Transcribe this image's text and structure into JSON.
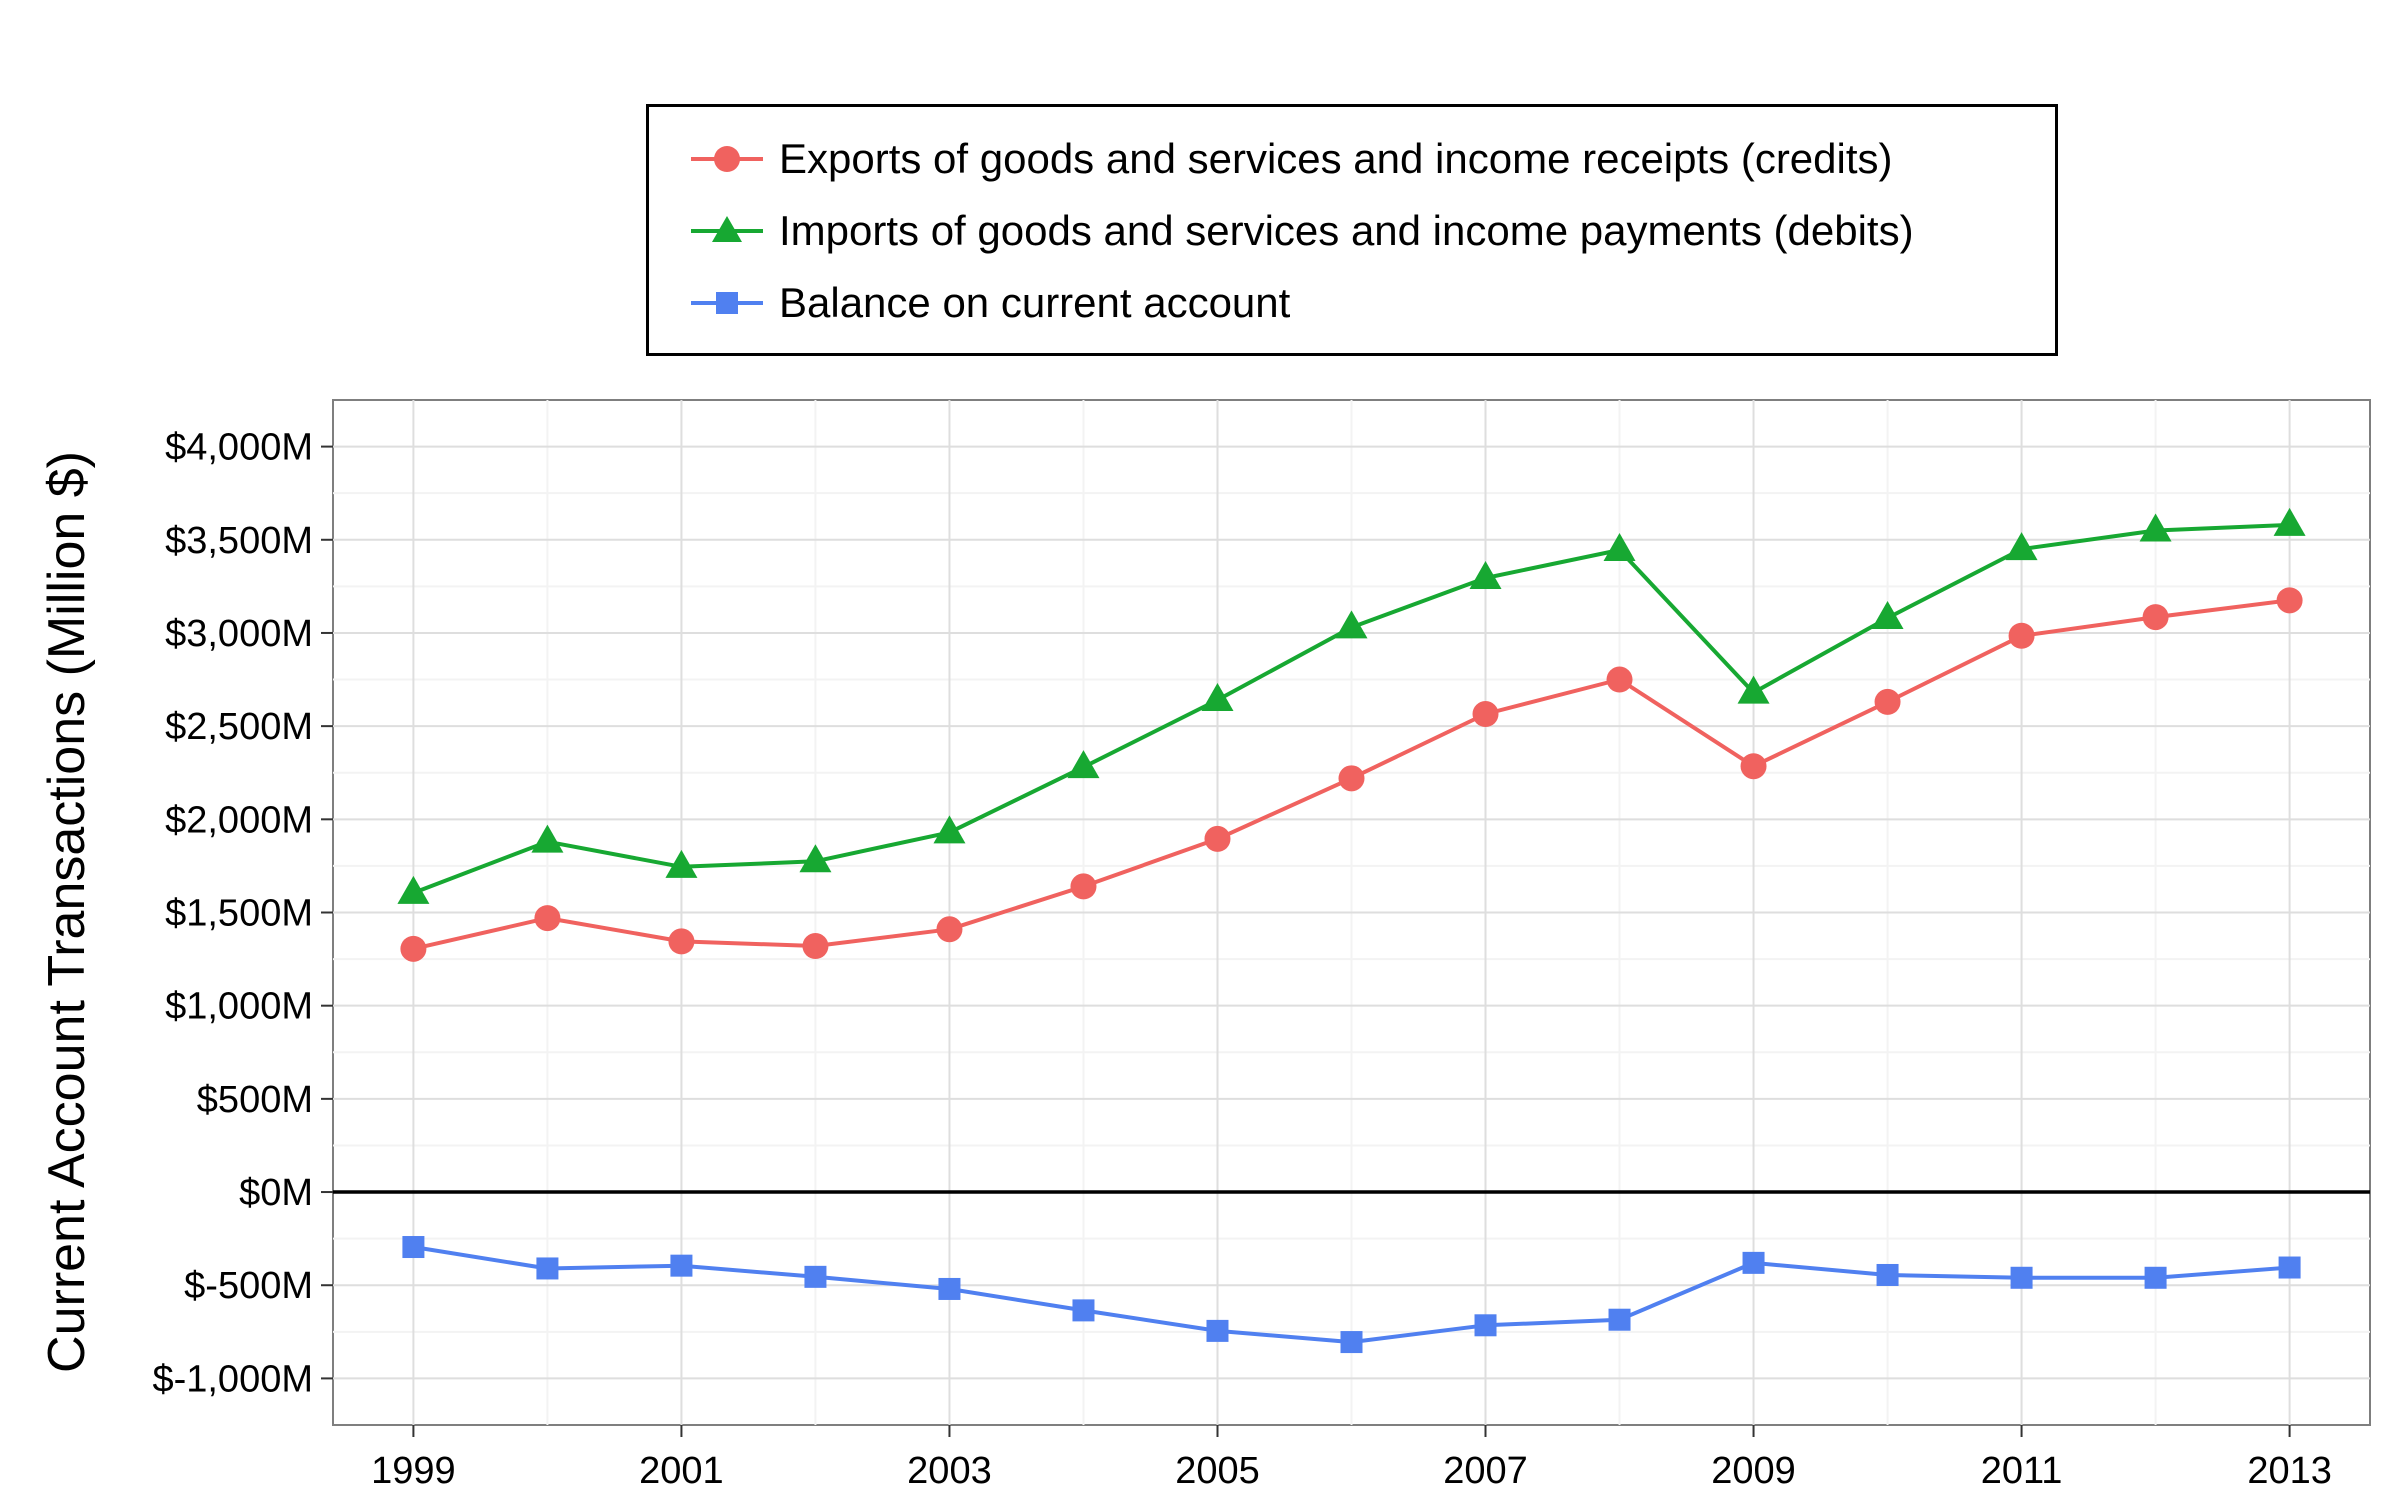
{
  "chart_data": {
    "type": "line",
    "title": "",
    "xlabel": "",
    "ylabel": "Current Account Transactions (Million $)",
    "x": [
      1999,
      2000,
      2001,
      2002,
      2003,
      2004,
      2005,
      2006,
      2007,
      2008,
      2009,
      2010,
      2011,
      2012,
      2013
    ],
    "x_ticks": [
      "1999",
      "2001",
      "2003",
      "2005",
      "2007",
      "2009",
      "2011",
      "2013"
    ],
    "x_tick_values": [
      1999,
      2001,
      2003,
      2005,
      2007,
      2009,
      2011,
      2013
    ],
    "xlim": [
      1998.4,
      2013.6
    ],
    "ylim": [
      -1250,
      4250
    ],
    "y_ticks": [
      "$-1,000M",
      "$-500M",
      "$0M",
      "$500M",
      "$1,000M",
      "$1,500M",
      "$2,000M",
      "$2,500M",
      "$3,000M",
      "$3,500M",
      "$4,000M"
    ],
    "y_tick_values": [
      -1000,
      -500,
      0,
      500,
      1000,
      1500,
      2000,
      2500,
      3000,
      3500,
      4000
    ],
    "grid": true,
    "zero_line": true,
    "legend_position": "top",
    "series": [
      {
        "name": "Exports of goods and services and income receipts (credits)",
        "color": "#f0625f",
        "marker": "circle",
        "values": [
          1305,
          1470,
          1345,
          1320,
          1410,
          1640,
          1895,
          2220,
          2565,
          2750,
          2285,
          2630,
          2985,
          3085,
          3175
        ]
      },
      {
        "name": "Imports of goods and services and income payments (debits)",
        "color": "#17a832",
        "marker": "triangle",
        "values": [
          1605,
          1880,
          1745,
          1775,
          1930,
          2280,
          2640,
          3030,
          3295,
          3445,
          2680,
          3080,
          3450,
          3550,
          3580
        ]
      },
      {
        "name": "Balance on current account",
        "color": "#5080f0",
        "marker": "square",
        "values": [
          -295,
          -410,
          -395,
          -455,
          -520,
          -635,
          -745,
          -805,
          -715,
          -685,
          -380,
          -445,
          -460,
          -460,
          -405
        ]
      }
    ]
  }
}
